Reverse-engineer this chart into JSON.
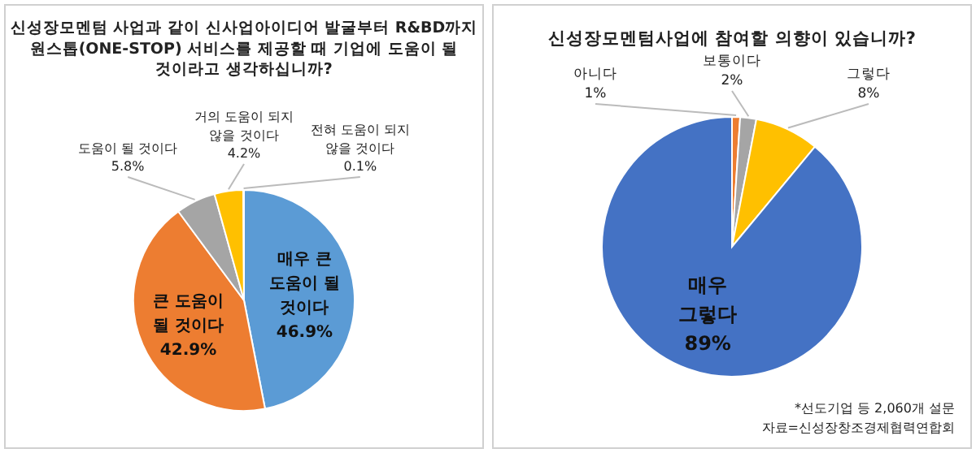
{
  "chart_data": [
    {
      "type": "pie",
      "title": "신성장모멘텀 사업과 같이 신사업아이디어 발굴부터 R&BD까지 원스톱(ONE-STOP) 서비스를 제공할 때 기업에 도움이 될 것이라고 생각하십니까?",
      "categories": [
        "매우 큰 도움이 될 것이다",
        "큰 도움이 될 것이다",
        "도움이 될 것이다",
        "거의 도움이 되지 않을 것이다",
        "전혀 도움이 되지 않을 것이다"
      ],
      "values": [
        46.9,
        42.9,
        5.8,
        4.2,
        0.1
      ],
      "colors": [
        "#5b9bd5",
        "#ed7d31",
        "#a5a5a5",
        "#ffc000",
        "#9dc3e6"
      ],
      "value_labels": [
        "46.9%",
        "42.9%",
        "5.8%",
        "4.2%",
        "0.1%"
      ]
    },
    {
      "type": "pie",
      "title": "신성장모멘텀사업에 참여할 의향이 있습니까?",
      "categories": [
        "아니다",
        "보통이다",
        "그렇다",
        "매우 그렇다"
      ],
      "values": [
        1,
        2,
        8,
        89
      ],
      "colors": [
        "#ed7d31",
        "#a5a5a5",
        "#ffc000",
        "#4472c4"
      ],
      "value_labels": [
        "1%",
        "2%",
        "8%",
        "89%"
      ],
      "annotations": [
        "*선도기업 등 2,060개 설문",
        "자료=신성장창조경제협력연합회"
      ]
    }
  ]
}
